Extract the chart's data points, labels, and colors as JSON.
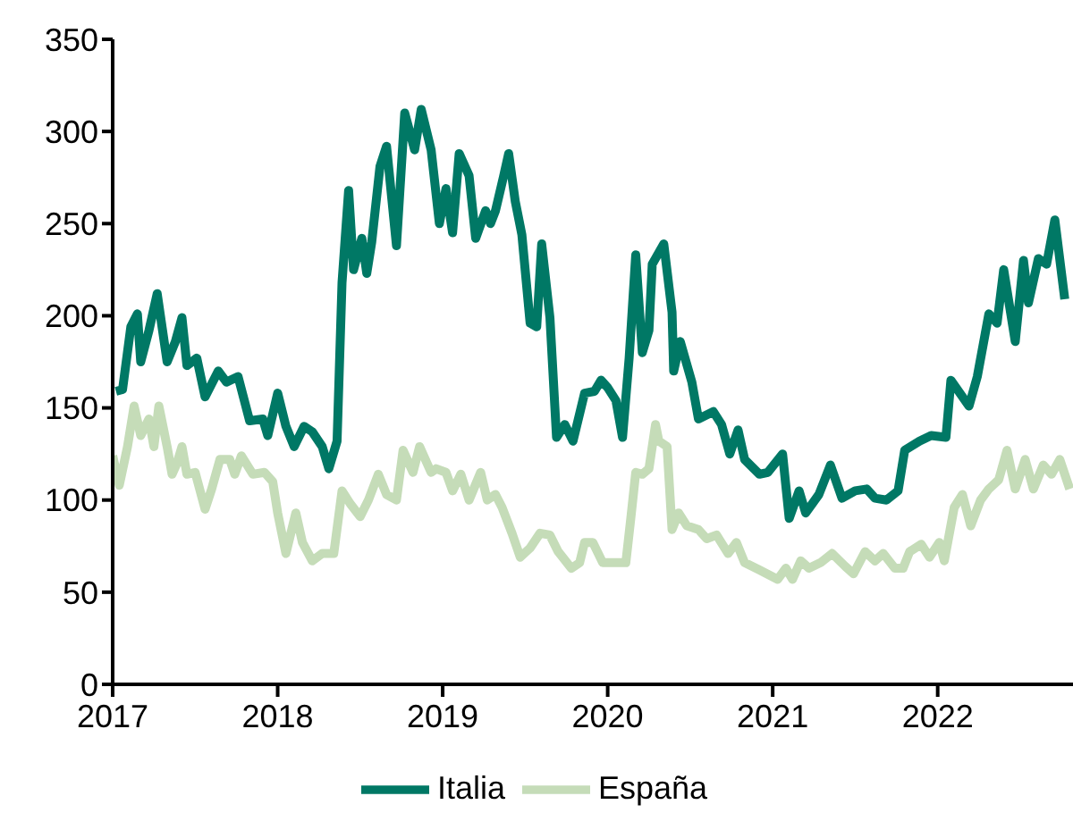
{
  "chart_data": {
    "type": "line",
    "xlim": [
      2017,
      2022.82
    ],
    "xticks": [
      2017,
      2018,
      2019,
      2020,
      2021,
      2022
    ],
    "ylim": [
      0,
      350
    ],
    "yticks": [
      0,
      50,
      100,
      150,
      200,
      250,
      300,
      350
    ],
    "grid": false,
    "legend": "bottom",
    "marker": "none",
    "line_style": "solid",
    "series": [
      {
        "name": "Italia",
        "color": "#007865",
        "x": [
          2017.02,
          2017.06,
          2017.11,
          2017.15,
          2017.17,
          2017.22,
          2017.27,
          2017.33,
          2017.38,
          2017.42,
          2017.45,
          2017.51,
          2017.56,
          2017.64,
          2017.69,
          2017.76,
          2017.83,
          2017.91,
          2017.94,
          2018.0,
          2018.05,
          2018.1,
          2018.16,
          2018.21,
          2018.27,
          2018.31,
          2018.36,
          2018.39,
          2018.43,
          2018.46,
          2018.51,
          2018.54,
          2018.57,
          2018.62,
          2018.66,
          2018.72,
          2018.77,
          2018.83,
          2018.87,
          2018.93,
          2018.98,
          2019.02,
          2019.06,
          2019.1,
          2019.16,
          2019.2,
          2019.26,
          2019.29,
          2019.32,
          2019.37,
          2019.4,
          2019.44,
          2019.48,
          2019.53,
          2019.57,
          2019.6,
          2019.65,
          2019.69,
          2019.74,
          2019.79,
          2019.86,
          2019.92,
          2019.96,
          2020.0,
          2020.05,
          2020.09,
          2020.13,
          2020.17,
          2020.21,
          2020.25,
          2020.27,
          2020.34,
          2020.39,
          2020.4,
          2020.44,
          2020.51,
          2020.55,
          2020.64,
          2020.69,
          2020.74,
          2020.79,
          2020.83,
          2020.92,
          2020.97,
          2021.06,
          2021.1,
          2021.16,
          2021.2,
          2021.28,
          2021.35,
          2021.42,
          2021.5,
          2021.57,
          2021.62,
          2021.69,
          2021.76,
          2021.8,
          2021.89,
          2021.96,
          2022.05,
          2022.08,
          2022.19,
          2022.24,
          2022.31,
          2022.36,
          2022.4,
          2022.47,
          2022.52,
          2022.55,
          2022.61,
          2022.66,
          2022.71,
          2022.77
        ],
        "values": [
          159,
          160,
          194,
          201,
          175,
          192,
          212,
          175,
          186,
          199,
          173,
          177,
          156,
          170,
          164,
          167,
          143,
          144,
          135,
          158,
          140,
          129,
          140,
          137,
          129,
          117,
          132,
          218,
          268,
          225,
          242,
          223,
          240,
          281,
          292,
          238,
          310,
          290,
          312,
          290,
          250,
          269,
          245,
          288,
          276,
          242,
          257,
          250,
          257,
          276,
          288,
          262,
          244,
          196,
          194,
          239,
          199,
          134,
          141,
          132,
          158,
          159,
          165,
          161,
          154,
          134,
          177,
          233,
          180,
          192,
          228,
          239,
          202,
          170,
          186,
          164,
          144,
          148,
          141,
          125,
          138,
          122,
          114,
          115,
          125,
          90,
          105,
          93,
          103,
          119,
          101,
          105,
          106,
          101,
          100,
          105,
          127,
          132,
          135,
          134,
          165,
          151,
          167,
          201,
          196,
          225,
          186,
          230,
          207,
          231,
          228,
          252,
          209
        ]
      },
      {
        "name": "España",
        "color": "#c5dcb8",
        "x": [
          2017.0,
          2017.04,
          2017.09,
          2017.13,
          2017.17,
          2017.22,
          2017.25,
          2017.28,
          2017.33,
          2017.36,
          2017.39,
          2017.42,
          2017.45,
          2017.5,
          2017.56,
          2017.6,
          2017.65,
          2017.71,
          2017.74,
          2017.78,
          2017.85,
          2017.92,
          2017.97,
          2018.0,
          2018.05,
          2018.11,
          2018.15,
          2018.21,
          2018.27,
          2018.34,
          2018.39,
          2018.44,
          2018.5,
          2018.55,
          2018.61,
          2018.66,
          2018.72,
          2018.76,
          2018.82,
          2018.86,
          2018.93,
          2018.96,
          2019.02,
          2019.06,
          2019.11,
          2019.16,
          2019.23,
          2019.27,
          2019.32,
          2019.36,
          2019.42,
          2019.47,
          2019.53,
          2019.59,
          2019.65,
          2019.7,
          2019.78,
          2019.83,
          2019.86,
          2019.91,
          2019.97,
          2020.04,
          2020.11,
          2020.14,
          2020.17,
          2020.21,
          2020.25,
          2020.29,
          2020.31,
          2020.36,
          2020.39,
          2020.43,
          2020.48,
          2020.55,
          2020.6,
          2020.66,
          2020.73,
          2020.78,
          2020.83,
          2020.92,
          2021.03,
          2021.08,
          2021.12,
          2021.17,
          2021.22,
          2021.29,
          2021.36,
          2021.44,
          2021.49,
          2021.56,
          2021.62,
          2021.67,
          2021.74,
          2021.79,
          2021.83,
          2021.9,
          2021.95,
          2022.01,
          2022.04,
          2022.1,
          2022.15,
          2022.2,
          2022.26,
          2022.31,
          2022.37,
          2022.42,
          2022.47,
          2022.53,
          2022.58,
          2022.64,
          2022.69,
          2022.74,
          2022.8
        ],
        "values": [
          124,
          108,
          129,
          151,
          135,
          144,
          129,
          151,
          129,
          114,
          120,
          129,
          114,
          115,
          95,
          106,
          122,
          122,
          114,
          124,
          114,
          115,
          110,
          93,
          71,
          93,
          77,
          67,
          71,
          71,
          105,
          98,
          91,
          100,
          114,
          103,
          100,
          127,
          115,
          129,
          115,
          117,
          115,
          105,
          114,
          100,
          115,
          100,
          103,
          96,
          82,
          69,
          74,
          82,
          81,
          72,
          63,
          66,
          77,
          77,
          66,
          66,
          66,
          90,
          115,
          114,
          117,
          141,
          132,
          129,
          84,
          93,
          86,
          84,
          79,
          81,
          71,
          77,
          66,
          62,
          57,
          63,
          57,
          67,
          63,
          66,
          71,
          64,
          60,
          72,
          67,
          71,
          63,
          63,
          72,
          76,
          69,
          77,
          67,
          96,
          103,
          86,
          100,
          106,
          111,
          127,
          106,
          122,
          106,
          119,
          114,
          122,
          106
        ]
      }
    ]
  }
}
